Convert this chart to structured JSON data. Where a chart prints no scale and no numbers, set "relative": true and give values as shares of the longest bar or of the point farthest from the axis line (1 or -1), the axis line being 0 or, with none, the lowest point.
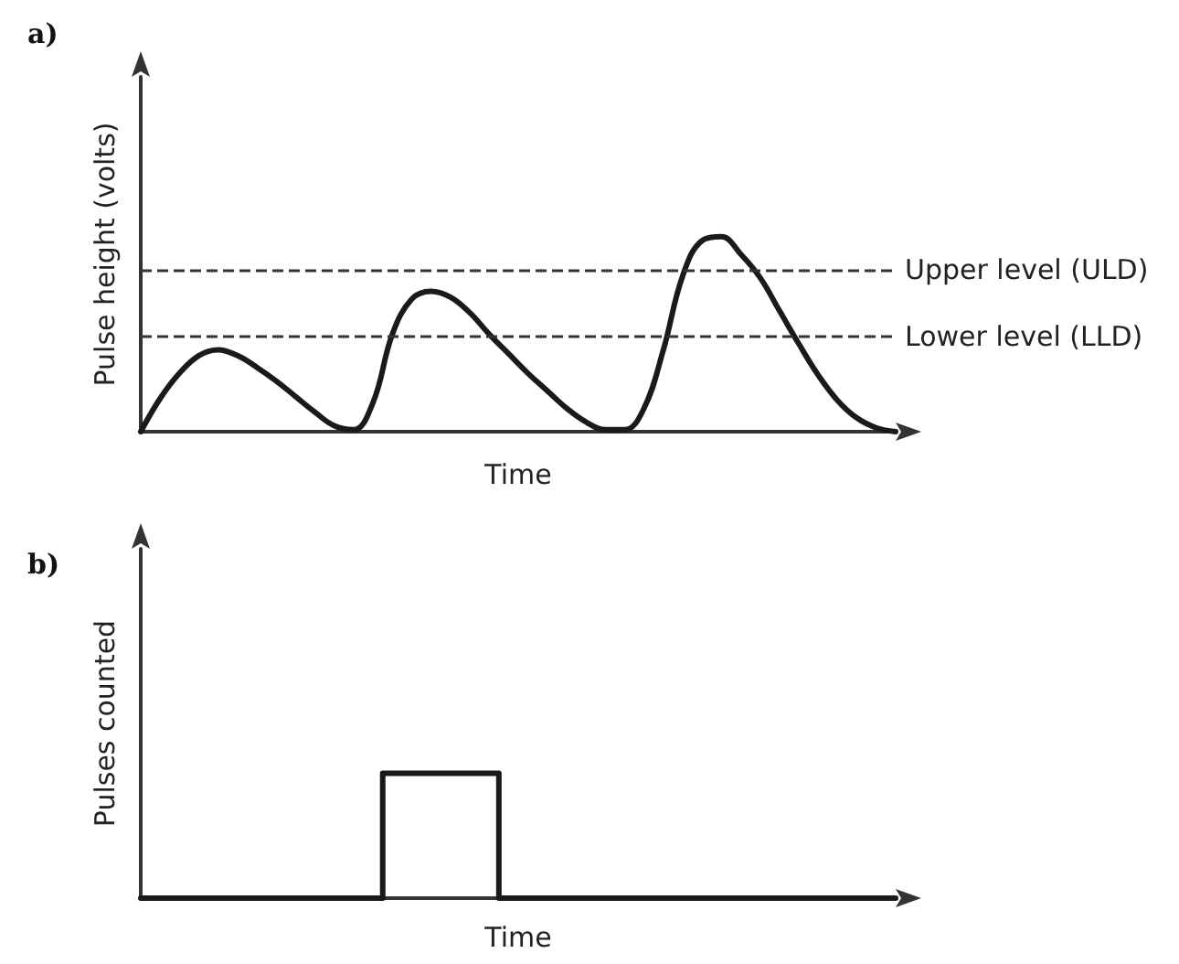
{
  "chart_data": [
    {
      "type": "line",
      "title": "a)",
      "xlabel": "Time",
      "ylabel": "Pulse height (volts)",
      "relative": true,
      "grid": false,
      "marker": "none",
      "line_style": "solid",
      "categories": [
        null,
        null,
        null,
        null,
        null,
        null,
        null,
        null,
        null,
        null,
        null,
        null,
        null,
        null,
        null,
        null,
        null,
        null,
        null,
        null,
        null,
        null,
        null,
        null,
        null,
        null,
        null,
        null,
        null,
        null,
        null,
        null,
        null,
        null,
        null,
        null,
        null,
        null,
        null,
        null
      ],
      "series": [
        {
          "color": "#1a1a1a",
          "values": [
            0,
            0.17,
            0.3,
            0.39,
            0.42,
            0.39,
            0.33,
            0.26,
            0.18,
            0.1,
            0.03,
            0.01,
            0.15,
            0.5,
            0.68,
            0.72,
            0.69,
            0.61,
            0.5,
            0.4,
            0.3,
            0.21,
            0.12,
            0.05,
            0.01,
            0.01,
            0.12,
            0.42,
            0.8,
            0.98,
            1,
            0.91,
            0.79,
            0.62,
            0.45,
            0.29,
            0.16,
            0.07,
            0.02,
            0
          ]
        }
      ],
      "ref_lines": [
        {
          "axis": "y",
          "value": 0.83,
          "label": "Upper level (ULD)",
          "color": "#333333",
          "line_style": "dashed"
        },
        {
          "axis": "y",
          "value": 0.49,
          "label": "Lower level (LLD)",
          "color": "#333333",
          "line_style": "dashed"
        }
      ]
    },
    {
      "type": "step",
      "title": "b)",
      "xlabel": "Time",
      "ylabel": "Pulses counted",
      "relative": true,
      "grid": false,
      "marker": "none",
      "line_style": "solid",
      "categories": [
        null,
        null,
        null,
        null,
        null,
        null,
        null,
        null,
        null,
        null,
        null,
        null,
        null,
        null,
        null,
        null,
        null,
        null,
        null,
        null,
        null,
        null,
        null,
        null,
        null,
        null,
        null,
        null,
        null,
        null,
        null,
        null,
        null,
        null,
        null,
        null,
        null,
        null,
        null,
        null
      ],
      "series": [
        {
          "color": "#1a1a1a",
          "values": [
            0,
            0,
            0,
            0,
            0,
            0,
            0,
            0,
            0,
            0,
            0,
            0,
            0,
            1,
            1,
            1,
            1,
            1,
            1,
            0,
            0,
            0,
            0,
            0,
            0,
            0,
            0,
            0,
            0,
            0,
            0,
            0,
            0,
            0,
            0,
            0,
            0,
            0,
            0,
            0
          ]
        }
      ]
    }
  ]
}
